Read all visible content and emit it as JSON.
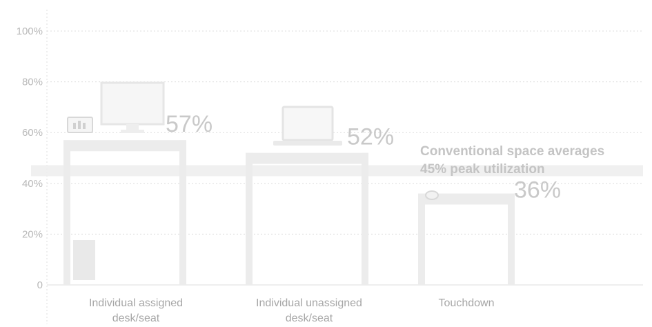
{
  "chart_data": {
    "type": "bar",
    "categories": [
      [
        "Individual assigned",
        "desk/seat"
      ],
      [
        "Individual unassigned",
        "desk/seat"
      ],
      [
        "Touchdown"
      ]
    ],
    "values": [
      57,
      52,
      36
    ],
    "data_labels": [
      "57%",
      "52%",
      "36%"
    ],
    "y_ticks": [
      "0",
      "20%",
      "40%",
      "60%",
      "80%",
      "100%"
    ],
    "ylim": [
      0,
      100
    ],
    "grid": true,
    "reference_line": {
      "value": 45,
      "text": [
        "Conventional space averages",
        "45% peak utilization"
      ]
    }
  },
  "colors": {
    "bar": "#ececec",
    "grid": "#dcdcdc",
    "band": "#ededed"
  }
}
